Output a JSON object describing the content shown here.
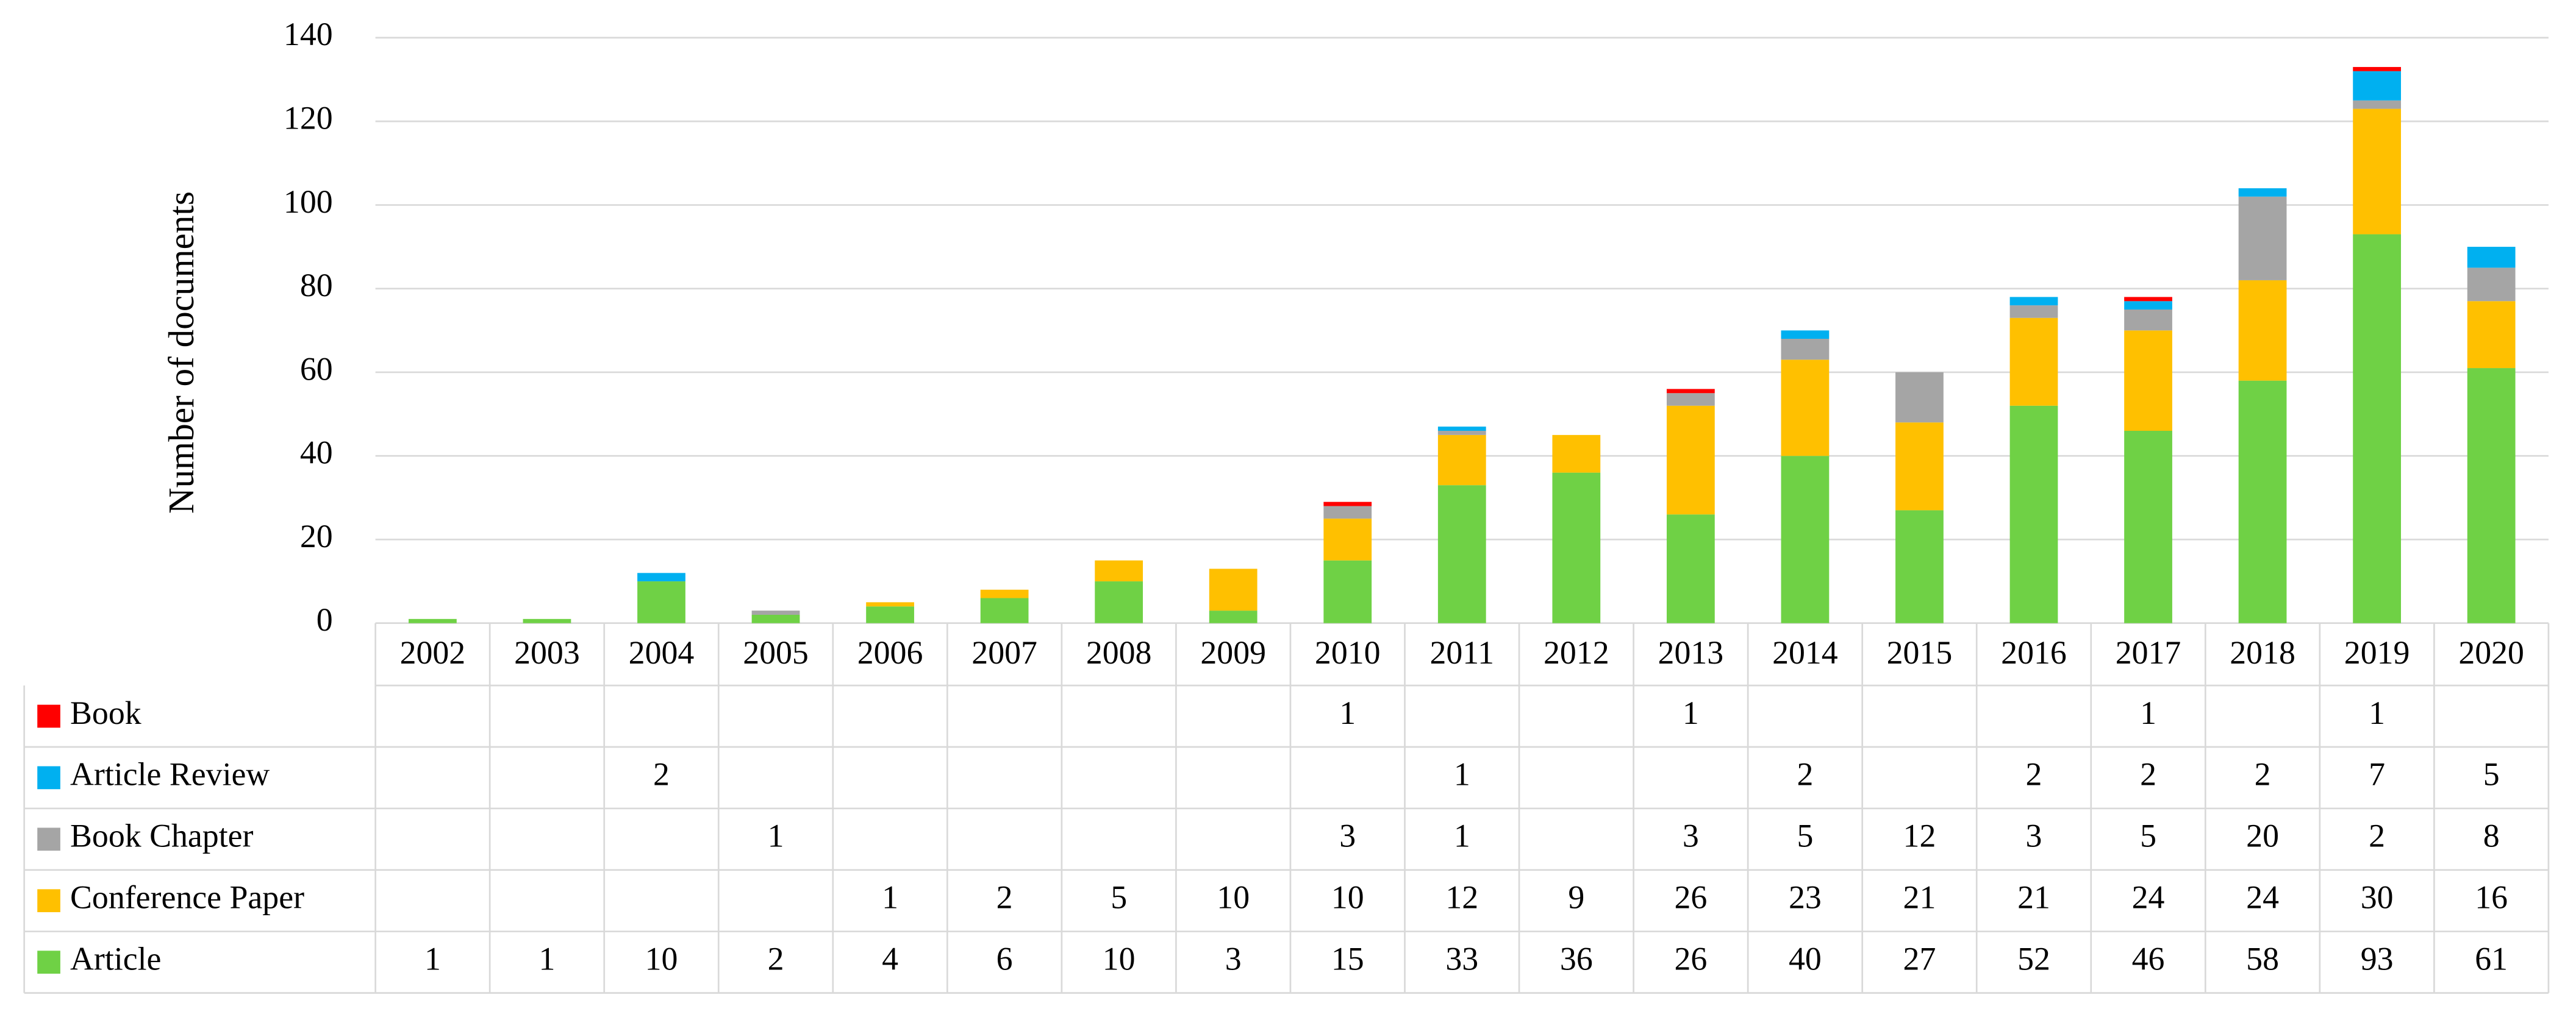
{
  "chart_data": {
    "type": "stacked_bar",
    "y_label": "Number of documents",
    "categories": [
      "2002",
      "2003",
      "2004",
      "2005",
      "2006",
      "2007",
      "2008",
      "2009",
      "2010",
      "2011",
      "2012",
      "2013",
      "2014",
      "2015",
      "2016",
      "2017",
      "2018",
      "2019",
      "2020"
    ],
    "series": [
      {
        "name": "Article",
        "color": "#6fd145",
        "values": [
          1,
          1,
          10,
          2,
          4,
          6,
          10,
          3,
          15,
          33,
          36,
          26,
          40,
          27,
          52,
          46,
          58,
          93,
          61
        ]
      },
      {
        "name": "Conference Paper",
        "color": "#ffc000",
        "values": [
          null,
          null,
          null,
          null,
          1,
          2,
          5,
          10,
          10,
          12,
          9,
          26,
          23,
          21,
          21,
          24,
          24,
          30,
          16
        ]
      },
      {
        "name": "Book Chapter",
        "color": "#a5a5a5",
        "values": [
          null,
          null,
          null,
          1,
          null,
          null,
          null,
          null,
          3,
          1,
          null,
          3,
          5,
          12,
          3,
          5,
          20,
          2,
          8
        ]
      },
      {
        "name": "Article Review",
        "color": "#00b0f0",
        "values": [
          null,
          null,
          2,
          null,
          null,
          null,
          null,
          null,
          null,
          1,
          null,
          null,
          2,
          null,
          2,
          2,
          2,
          7,
          5
        ]
      },
      {
        "name": "Book",
        "color": "#ff0000",
        "values": [
          null,
          null,
          null,
          null,
          null,
          null,
          null,
          null,
          1,
          null,
          null,
          1,
          null,
          null,
          null,
          1,
          null,
          1,
          null
        ]
      }
    ],
    "ylim": [
      0,
      140
    ],
    "yticks": [
      0,
      20,
      40,
      60,
      80,
      100,
      120,
      140
    ],
    "grid": true
  }
}
